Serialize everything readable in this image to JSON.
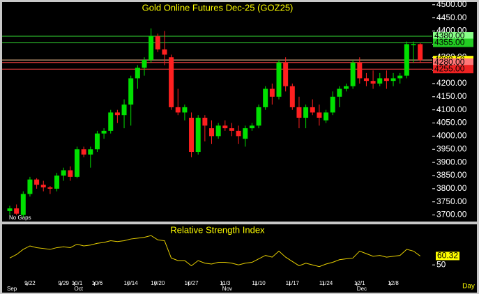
{
  "chart_data": [
    {
      "type": "candlestick",
      "title": "Gold Online Futures Dec-25 (GOZ25)",
      "note": "No Gaps",
      "period": "Day",
      "up_color": "#00e000",
      "down_color": "#ff2020",
      "categories": [
        null,
        null,
        null,
        "9/22",
        null,
        null,
        null,
        null,
        "9/29",
        null,
        "10/1",
        null,
        null,
        "10/6",
        null,
        null,
        null,
        null,
        "10/14",
        null,
        null,
        null,
        "10/20",
        null,
        null,
        null,
        null,
        "10/27",
        null,
        null,
        null,
        null,
        "11/3",
        null,
        null,
        null,
        null,
        "11/10",
        null,
        null,
        null,
        null,
        "11/17",
        null,
        null,
        null,
        null,
        "11/24",
        null,
        null,
        null,
        null,
        "12/1",
        null,
        null,
        null,
        null,
        "12/8",
        null,
        null,
        null,
        null
      ],
      "month_categories": [
        "Sep",
        null,
        null,
        null,
        null,
        null,
        null,
        null,
        null,
        null,
        "Oct",
        null,
        null,
        null,
        null,
        null,
        null,
        null,
        null,
        null,
        null,
        null,
        null,
        null,
        null,
        null,
        null,
        null,
        null,
        null,
        null,
        null,
        "Nov",
        null,
        null,
        null,
        null,
        null,
        null,
        null,
        null,
        null,
        null,
        null,
        null,
        null,
        null,
        null,
        null,
        null,
        null,
        null,
        "Dec",
        null,
        null,
        null,
        null,
        null,
        null,
        null,
        null,
        null
      ],
      "open": [
        3715,
        3725,
        3700,
        3780,
        3835,
        3815,
        3805,
        3800,
        3850,
        3870,
        3845,
        3950,
        3930,
        3950,
        4010,
        4020,
        4090,
        4080,
        4120,
        4220,
        4260,
        4290,
        4380,
        4330,
        4300,
        4110,
        4090,
        4070,
        3940,
        4070,
        4030,
        4000,
        4040,
        4030,
        4020,
        3990,
        4030,
        4040,
        4110,
        4180,
        4150,
        4280,
        4190,
        4110,
        4070,
        4110,
        4090,
        4060,
        4090,
        4150,
        4180,
        4190,
        4280,
        4220,
        4210,
        4200,
        4220,
        4210,
        4220,
        4230,
        4350,
        4350
      ],
      "high": [
        3735,
        3740,
        3790,
        3845,
        3840,
        3830,
        3810,
        3860,
        3880,
        3885,
        3960,
        3960,
        3960,
        4020,
        4030,
        4100,
        4100,
        4140,
        4230,
        4270,
        4300,
        4410,
        4390,
        4400,
        4310,
        4180,
        4120,
        4090,
        4080,
        4080,
        4060,
        4050,
        4060,
        4050,
        4040,
        4040,
        4050,
        4120,
        4190,
        4200,
        4290,
        4300,
        4200,
        4150,
        4120,
        4140,
        4120,
        4100,
        4170,
        4190,
        4200,
        4290,
        4300,
        4240,
        4250,
        4240,
        4250,
        4240,
        4240,
        4360,
        4360,
        4355
      ],
      "low": [
        3700,
        3700,
        3690,
        3770,
        3800,
        3790,
        3780,
        3790,
        3830,
        3830,
        3840,
        3920,
        3880,
        3940,
        3990,
        4010,
        4050,
        4030,
        4040,
        4180,
        4230,
        4280,
        4320,
        4270,
        4100,
        4080,
        4060,
        3920,
        3930,
        3980,
        3970,
        3990,
        4020,
        4000,
        3970,
        3960,
        4020,
        4030,
        4100,
        4120,
        4140,
        4170,
        4100,
        4030,
        4030,
        4080,
        4040,
        4050,
        4080,
        4110,
        4170,
        4180,
        4200,
        4190,
        4180,
        4190,
        4180,
        4190,
        4200,
        4220,
        4280,
        4280
      ],
      "close": [
        3725,
        3705,
        3780,
        3835,
        3815,
        3805,
        3800,
        3850,
        3870,
        3845,
        3950,
        3930,
        3950,
        4010,
        4020,
        4090,
        4080,
        4120,
        4220,
        4260,
        4290,
        4380,
        4330,
        4310,
        4110,
        4090,
        4110,
        3940,
        4070,
        4040,
        4000,
        4040,
        4030,
        4020,
        4000,
        4030,
        4040,
        4110,
        4180,
        4150,
        4280,
        4190,
        4110,
        4070,
        4110,
        4090,
        4070,
        4090,
        4150,
        4180,
        4190,
        4280,
        4220,
        4210,
        4200,
        4220,
        4210,
        4220,
        4230,
        4350,
        4350,
        4289.5
      ],
      "ylim": [
        3675,
        4510
      ],
      "yticks": [
        {
          "value": 3700,
          "label": "3700.00"
        },
        {
          "value": 3750,
          "label": "3750.00"
        },
        {
          "value": 3800,
          "label": "3800.00"
        },
        {
          "value": 3850,
          "label": "3850.00"
        },
        {
          "value": 3900,
          "label": "3900.00"
        },
        {
          "value": 3950,
          "label": "3950.00"
        },
        {
          "value": 4000,
          "label": "4000.00"
        },
        {
          "value": 4050,
          "label": "4050.00"
        },
        {
          "value": 4100,
          "label": "4100.00"
        },
        {
          "value": 4150,
          "label": "4150.00"
        },
        {
          "value": 4200,
          "label": "4200.00"
        },
        {
          "value": 4250,
          "label": "4250.00"
        },
        {
          "value": 4300,
          "label": "4300.00"
        },
        {
          "value": 4350,
          "label": "4350.00"
        },
        {
          "value": 4400,
          "label": "4400.00"
        },
        {
          "value": 4450,
          "label": "4450.00"
        },
        {
          "value": 4500,
          "label": "4500.00"
        }
      ],
      "levels": [
        {
          "value": 4380,
          "label": "4380.00",
          "color": "#33dd33",
          "box": "#88ff88"
        },
        {
          "value": 4355,
          "label": "4355.00",
          "color": "#33dd33",
          "box": "#22cc22"
        },
        {
          "value": 4289.5,
          "label": "4289.50",
          "color": "#ffcc99",
          "box": "#ffff00"
        },
        {
          "value": 4280,
          "label": "4280.00",
          "color": "#ff4444",
          "box": "#ff7777"
        },
        {
          "value": 4255,
          "label": "4255.00",
          "color": "#ff4444",
          "box": "#ee2222"
        }
      ]
    },
    {
      "type": "line",
      "title": "Relative Strength Index",
      "color": "#e8d000",
      "values": [
        58,
        62,
        68,
        72,
        70,
        69,
        68,
        70,
        71,
        70,
        74,
        72,
        73,
        75,
        76,
        78,
        77,
        78,
        80,
        81,
        82,
        84,
        79,
        78,
        58,
        55,
        55,
        49,
        55,
        52,
        51,
        53,
        53,
        52,
        50,
        52,
        53,
        57,
        61,
        59,
        66,
        59,
        54,
        49,
        52,
        50,
        48,
        51,
        53,
        56,
        57,
        58,
        66,
        63,
        60,
        61,
        59,
        60,
        61,
        68,
        66,
        60.32
      ],
      "ylim": [
        30,
        97
      ],
      "yticks": [
        50
      ]
    }
  ]
}
